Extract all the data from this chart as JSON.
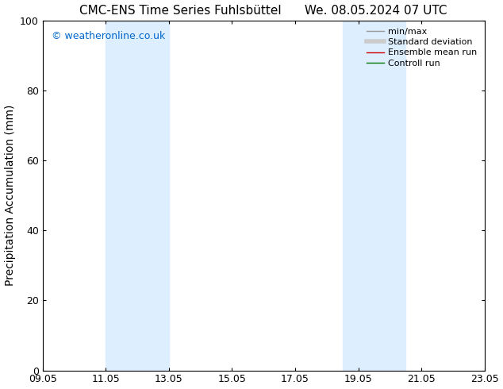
{
  "title_left": "CMC-ENS Time Series Fuhlsbüttel",
  "title_right": "We. 08.05.2024 07 UTC",
  "ylabel": "Precipitation Accumulation (mm)",
  "ylim": [
    0,
    100
  ],
  "yticks": [
    0,
    20,
    40,
    60,
    80,
    100
  ],
  "xtick_labels": [
    "09.05",
    "11.05",
    "13.05",
    "15.05",
    "17.05",
    "19.05",
    "21.05",
    "23.05"
  ],
  "xtick_positions": [
    0,
    2,
    4,
    6,
    8,
    10,
    12,
    14
  ],
  "xlim": [
    0,
    14
  ],
  "shaded_bands": [
    {
      "x_start": 2,
      "x_end": 4,
      "color": "#ddeeff"
    },
    {
      "x_start": 9.5,
      "x_end": 11.5,
      "color": "#ddeeff"
    }
  ],
  "watermark_text": "© weatheronline.co.uk",
  "watermark_color": "#0066cc",
  "legend_entries": [
    {
      "label": "min/max",
      "color": "#999999",
      "linewidth": 1.0,
      "linestyle": "-"
    },
    {
      "label": "Standard deviation",
      "color": "#cccccc",
      "linewidth": 4,
      "linestyle": "-"
    },
    {
      "label": "Ensemble mean run",
      "color": "#cc0000",
      "linewidth": 1.0,
      "linestyle": "-"
    },
    {
      "label": "Controll run",
      "color": "#007700",
      "linewidth": 1.0,
      "linestyle": "-"
    }
  ],
  "background_color": "#ffffff",
  "title_fontsize": 11,
  "axis_label_fontsize": 10,
  "tick_fontsize": 9,
  "legend_fontsize": 8,
  "watermark_fontsize": 9
}
